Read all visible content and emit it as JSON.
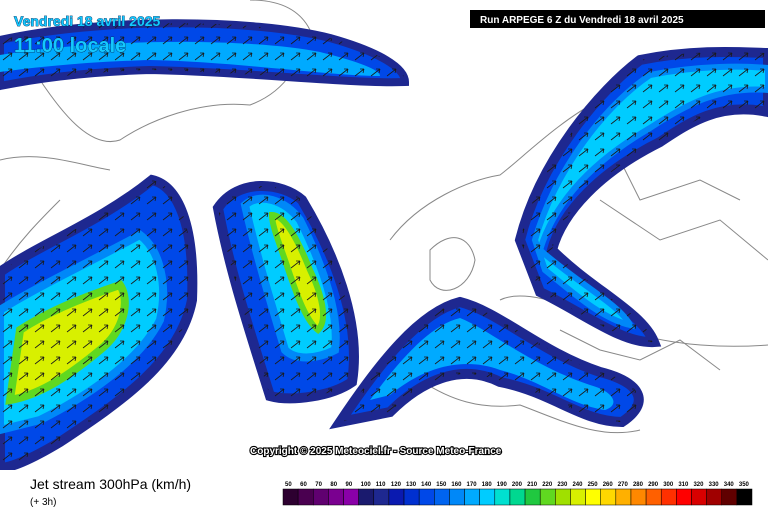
{
  "header": {
    "date": "Vendredi 18 avril 2025",
    "time": "11:00 locale",
    "run": "Run ARPEGE 6 Z du Vendredi 18 avril 2025"
  },
  "copyright": "Copyright © 2025 Meteociel.fr - Source Meteo-France",
  "footer": {
    "title": "Jet stream 300hPa (km/h)",
    "step": "(+ 3h)"
  },
  "legend": {
    "labels": [
      50,
      60,
      70,
      80,
      90,
      100,
      110,
      120,
      130,
      140,
      150,
      160,
      170,
      180,
      190,
      200,
      210,
      220,
      230,
      240,
      250,
      260,
      270,
      280,
      290,
      300,
      310,
      320,
      330,
      340,
      350
    ],
    "colors": [
      "#2d0030",
      "#4a0050",
      "#600070",
      "#7a0090",
      "#8a00a8",
      "#1a1a6e",
      "#1e2890",
      "#0a1ab0",
      "#0030d0",
      "#0048e8",
      "#0064f0",
      "#0088f8",
      "#00aaff",
      "#00ccff",
      "#00e0d0",
      "#00d890",
      "#20c840",
      "#60d820",
      "#a0e000",
      "#d8f000",
      "#ffff00",
      "#ffd800",
      "#ffb000",
      "#ff8800",
      "#ff6000",
      "#ff3000",
      "#ff0000",
      "#d80000",
      "#a00000",
      "#600000",
      "#000000"
    ]
  }
}
